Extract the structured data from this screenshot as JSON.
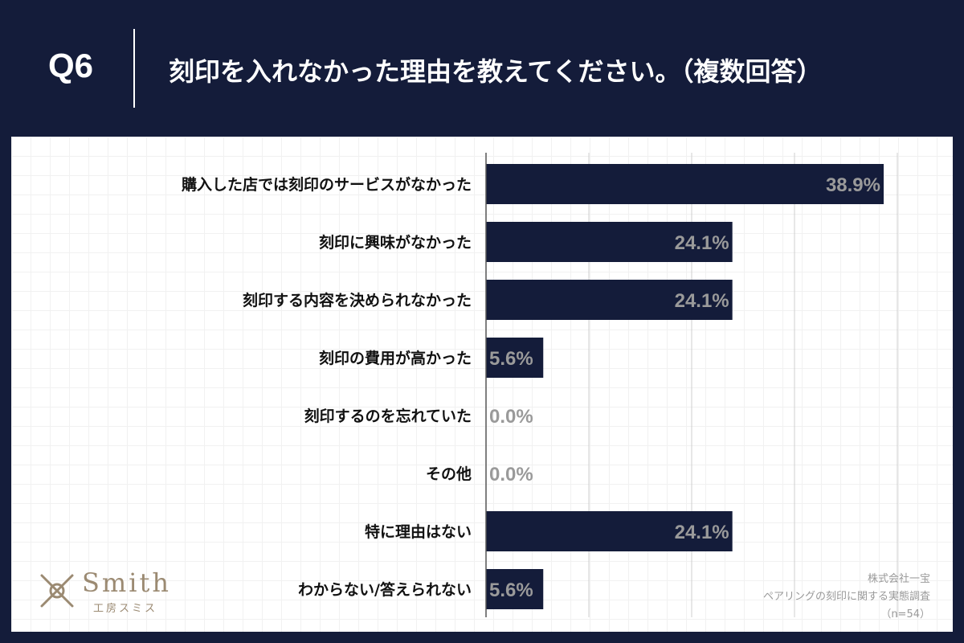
{
  "header": {
    "question_number": "Q6",
    "question_title": "刻印を入れなかった理由を教えてください。（複数回答）"
  },
  "chart_data": {
    "type": "bar",
    "orientation": "horizontal",
    "categories": [
      "購入した店では刻印のサービスがなかった",
      "刻印に興味がなかった",
      "刻印する内容を決められなかった",
      "刻印の費用が高かった",
      "刻印するのを忘れていた",
      "その他",
      "特に理由はない",
      "わからない/答えられない"
    ],
    "values": [
      38.9,
      24.1,
      24.1,
      5.6,
      0.0,
      0.0,
      24.1,
      5.6
    ],
    "value_labels": [
      "38.9%",
      "24.1%",
      "24.1%",
      "5.6%",
      "0.0%",
      "0.0%",
      "24.1%",
      "5.6%"
    ],
    "xlim": [
      0,
      40
    ],
    "grid": true,
    "bar_color": "#141c3a"
  },
  "logo": {
    "name": "Smith",
    "sub": "工房スミス"
  },
  "source": {
    "company": "株式会社一宝",
    "survey": "ペアリングの刻印に関する実態調査",
    "sample": "（n=54）"
  }
}
